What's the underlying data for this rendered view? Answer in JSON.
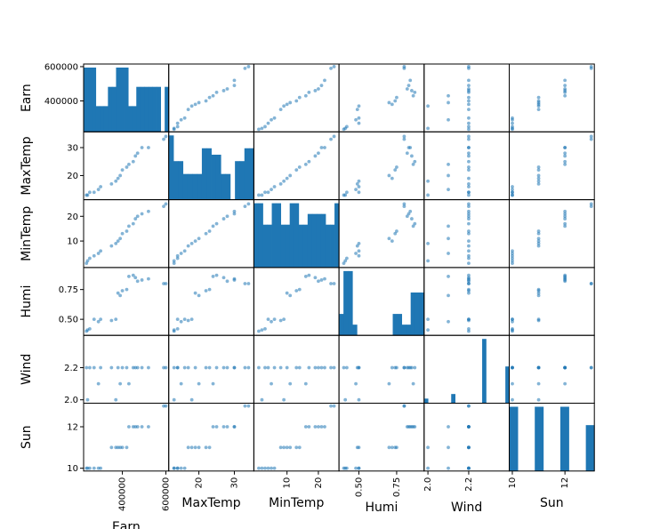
{
  "chart_data": {
    "type": "scatter-matrix",
    "variables": [
      "Earn",
      "MaxTemp",
      "MinTemp",
      "Humi",
      "Wind",
      "Sun"
    ],
    "colors": {
      "point": "#1f77b4",
      "bar": "#1f77b4",
      "frame": "#000000"
    },
    "ranges": {
      "Earn": [
        230000,
        605000
      ],
      "MaxTemp": [
        12.0,
        35.0
      ],
      "MinTemp": [
        0.0,
        26.0
      ],
      "Humi": [
        0.38,
        0.92
      ],
      "Wind": [
        1.99,
        2.39
      ],
      "Sun": [
        9.95,
        13.05
      ]
    },
    "ticks": {
      "Earn": {
        "values": [
          400000,
          600000
        ],
        "labels": [
          "400000",
          "600000"
        ]
      },
      "MaxTemp": {
        "values": [
          20,
          30
        ],
        "labels": [
          "20",
          "30"
        ]
      },
      "MinTemp": {
        "values": [
          10,
          20
        ],
        "labels": [
          "10",
          "20"
        ]
      },
      "Humi": {
        "values": [
          0.5,
          0.75
        ],
        "labels": [
          "0.50",
          "0.75"
        ]
      },
      "Wind": {
        "values": [
          2.0,
          2.2
        ],
        "labels": [
          "2.0",
          "2.2"
        ]
      },
      "Sun": {
        "values": [
          10,
          12
        ],
        "labels": [
          "10",
          "12"
        ]
      }
    },
    "records": [
      {
        "Earn": 600000,
        "MaxTemp": 34,
        "MinTemp": 25,
        "Humi": 0.8,
        "Wind": 2.2,
        "Sun": 13
      },
      {
        "Earn": 590000,
        "MaxTemp": 33,
        "MinTemp": 24,
        "Humi": 0.8,
        "Wind": 2.2,
        "Sun": 13
      },
      {
        "Earn": 520000,
        "MaxTemp": 30,
        "MinTemp": 22,
        "Humi": 0.84,
        "Wind": 2.2,
        "Sun": 12
      },
      {
        "Earn": 490000,
        "MaxTemp": 30,
        "MinTemp": 21,
        "Humi": 0.83,
        "Wind": 2.2,
        "Sun": 12
      },
      {
        "Earn": 470000,
        "MaxTemp": 28,
        "MinTemp": 20,
        "Humi": 0.82,
        "Wind": 2.2,
        "Sun": 12
      },
      {
        "Earn": 460000,
        "MaxTemp": 27,
        "MinTemp": 19,
        "Humi": 0.85,
        "Wind": 2.2,
        "Sun": 12
      },
      {
        "Earn": 450000,
        "MaxTemp": 25,
        "MinTemp": 17,
        "Humi": 0.87,
        "Wind": 2.2,
        "Sun": 12
      },
      {
        "Earn": 430000,
        "MaxTemp": 24,
        "MinTemp": 16,
        "Humi": 0.86,
        "Wind": 2.1,
        "Sun": 12
      },
      {
        "Earn": 420000,
        "MaxTemp": 23,
        "MinTemp": 14,
        "Humi": 0.75,
        "Wind": 2.2,
        "Sun": 11
      },
      {
        "Earn": 400000,
        "MaxTemp": 22,
        "MinTemp": 13,
        "Humi": 0.74,
        "Wind": 2.2,
        "Sun": 11
      },
      {
        "Earn": 390000,
        "MaxTemp": 20,
        "MinTemp": 11,
        "Humi": 0.7,
        "Wind": 2.1,
        "Sun": 11
      },
      {
        "Earn": 380000,
        "MaxTemp": 19,
        "MinTemp": 10,
        "Humi": 0.72,
        "Wind": 2.2,
        "Sun": 11
      },
      {
        "Earn": 370000,
        "MaxTemp": 18,
        "MinTemp": 9,
        "Humi": 0.5,
        "Wind": 2.0,
        "Sun": 11
      },
      {
        "Earn": 350000,
        "MaxTemp": 17,
        "MinTemp": 8,
        "Humi": 0.49,
        "Wind": 2.2,
        "Sun": 11
      },
      {
        "Earn": 300000,
        "MaxTemp": 16,
        "MinTemp": 6,
        "Humi": 0.5,
        "Wind": 2.2,
        "Sun": 10
      },
      {
        "Earn": 290000,
        "MaxTemp": 15,
        "MinTemp": 5,
        "Humi": 0.48,
        "Wind": 2.1,
        "Sun": 10
      },
      {
        "Earn": 270000,
        "MaxTemp": 14,
        "MinTemp": 4,
        "Humi": 0.5,
        "Wind": 2.2,
        "Sun": 10
      },
      {
        "Earn": 250000,
        "MaxTemp": 14,
        "MinTemp": 3,
        "Humi": 0.42,
        "Wind": 2.2,
        "Sun": 10
      },
      {
        "Earn": 240000,
        "MaxTemp": 13,
        "MinTemp": 2,
        "Humi": 0.41,
        "Wind": 2.0,
        "Sun": 10
      },
      {
        "Earn": 235000,
        "MaxTemp": 13,
        "MinTemp": 1,
        "Humi": 0.4,
        "Wind": 2.2,
        "Sun": 10
      }
    ],
    "histograms": {
      "Earn": [
        10,
        10,
        10,
        4,
        4,
        4,
        7,
        7,
        10,
        10,
        10,
        4,
        4,
        7,
        7,
        7,
        7,
        7,
        7,
        0,
        7
      ],
      "MaxTemp": [
        10,
        6,
        6,
        4,
        4,
        4,
        4,
        8,
        8,
        7,
        7,
        4,
        4,
        0,
        6,
        6,
        8,
        8
      ],
      "MinTemp": [
        6,
        6,
        4,
        4,
        6,
        6,
        4,
        4,
        6,
        6,
        4,
        4,
        5,
        5,
        5,
        5,
        4,
        4,
        6
      ],
      "Humi": [
        2,
        6,
        6,
        1,
        0,
        0,
        0,
        0,
        0,
        0,
        0,
        0,
        2,
        2,
        1,
        1,
        4,
        4,
        4
      ],
      "Wind": [
        1,
        0,
        0,
        0,
        0,
        0,
        0,
        2,
        0,
        0,
        0,
        0,
        0,
        0,
        0,
        14,
        0,
        0,
        0,
        0,
        0,
        8
      ],
      "Sun": [
        7,
        0,
        0,
        7,
        0,
        0,
        7,
        0,
        0,
        5
      ]
    }
  }
}
